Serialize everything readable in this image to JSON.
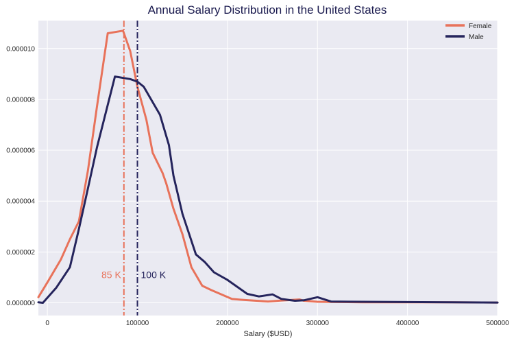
{
  "chart_data": {
    "type": "line",
    "title": "Annual Salary Distribution in the United States",
    "xlabel": "Salary ($USD)",
    "ylabel": "",
    "xlim": [
      -10000,
      500000
    ],
    "ylim": [
      -5e-07,
      1.11e-05
    ],
    "x_ticks": [
      0,
      100000,
      200000,
      300000,
      400000,
      500000
    ],
    "x_tick_labels": [
      "0",
      "100000",
      "200000",
      "300000",
      "400000",
      "500000"
    ],
    "y_ticks": [
      0.0,
      2e-06,
      4e-06,
      6e-06,
      8e-06,
      1e-05
    ],
    "y_tick_labels": [
      "0.000000",
      "0.000002",
      "0.000004",
      "0.000006",
      "0.000008",
      "0.000010"
    ],
    "grid": true,
    "legend_position": "top-right",
    "colors": {
      "background": "#eaeaf2",
      "grid": "#ffffff",
      "title": "#1a1a4e",
      "text": "#262626"
    },
    "series": [
      {
        "name": "Female",
        "color": "#e8725a",
        "x": [
          -10000,
          0,
          15000,
          25000,
          35000,
          45000,
          55000,
          67000,
          84000,
          92000,
          100000,
          110000,
          117000,
          128000,
          132000,
          140000,
          150000,
          160000,
          172000,
          182000,
          205000,
          215000,
          245000,
          260000,
          280000,
          285000,
          300000,
          320000,
          350000,
          400000,
          450000,
          500000
        ],
        "y": [
          2.2e-07,
          8e-07,
          1.7e-06,
          2.5e-06,
          3.2e-06,
          5.2e-06,
          7.7e-06,
          1.06e-05,
          1.07e-05,
          9.9e-06,
          8.5e-06,
          7.2e-06,
          5.9e-06,
          5.1e-06,
          4.7e-06,
          3.7e-06,
          2.7e-06,
          1.4e-06,
          6.7e-07,
          5e-07,
          1.5e-07,
          1.2e-07,
          5e-08,
          9e-08,
          1.3e-07,
          8e-08,
          4e-08,
          3e-08,
          2e-08,
          2e-08,
          2e-08,
          1e-08
        ]
      },
      {
        "name": "Male",
        "color": "#25245c",
        "x": [
          -10000,
          -5000,
          10000,
          25000,
          35000,
          45000,
          55000,
          75000,
          92000,
          100000,
          107000,
          125000,
          135000,
          140000,
          150000,
          165000,
          175000,
          185000,
          200000,
          222000,
          235000,
          250000,
          260000,
          275000,
          285000,
          300000,
          315000,
          350000,
          400000,
          450000,
          500000
        ],
        "y": [
          2e-08,
          0.0,
          6e-07,
          1.4e-06,
          2.9e-06,
          4.5e-06,
          6.1e-06,
          8.9e-06,
          8.8e-06,
          8.7e-06,
          8.5e-06,
          7.4e-06,
          6.2e-06,
          5e-06,
          3.5e-06,
          1.9e-06,
          1.6e-06,
          1.2e-06,
          9e-07,
          3.5e-07,
          2.5e-07,
          3.3e-07,
          1.5e-07,
          8e-08,
          1e-07,
          2.2e-07,
          5e-08,
          4e-08,
          3e-08,
          2e-08,
          1e-08
        ]
      }
    ],
    "reference_lines": [
      {
        "x": 85000,
        "color": "#e8725a",
        "label": "85 K",
        "label_align": "left"
      },
      {
        "x": 100000,
        "color": "#25245c",
        "label": "100 K",
        "label_align": "right"
      }
    ]
  }
}
